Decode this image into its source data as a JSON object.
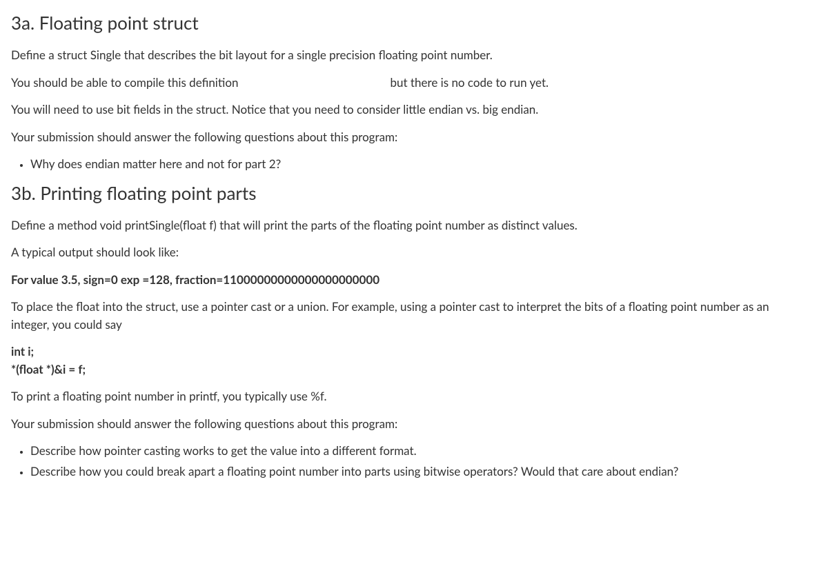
{
  "section3a": {
    "heading": "3a. Floating point struct",
    "p1": "Define a struct Single that describes the bit layout for a single precision floating point number.",
    "p2a": "You should be able to compile this definition",
    "p2b": "but there is no code to run yet.",
    "p3": "You will need to use bit fields in the struct. Notice that you need to consider little endian vs. big endian.",
    "p4": "Your submission should answer the following questions about this program:",
    "bullets": [
      "Why does endian matter here and not for part 2?"
    ]
  },
  "section3b": {
    "heading": "3b. Printing floating point parts",
    "p1": "Define a method void printSingle(float f) that will print the parts of the floating point number as distinct values.",
    "p2": "A typical output should look like:",
    "p3": "For value 3.5, sign=0 exp =128, fraction=11000000000000000000000",
    "p4": "To place the float into the struct, use a pointer cast or a union. For example, using a pointer cast to interpret the bits of a floating point number as an integer, you could say",
    "code1": "int i;",
    "code2": "*(float *)&i = f;",
    "p5": "To print a floating point number in printf, you typically use %f.",
    "p6": "Your submission should answer the following questions about this program:",
    "bullets": [
      "Describe how pointer casting works to get the value into a different format.",
      "Describe how you could break apart a floating point number into parts using bitwise operators? Would that care about endian?"
    ]
  }
}
